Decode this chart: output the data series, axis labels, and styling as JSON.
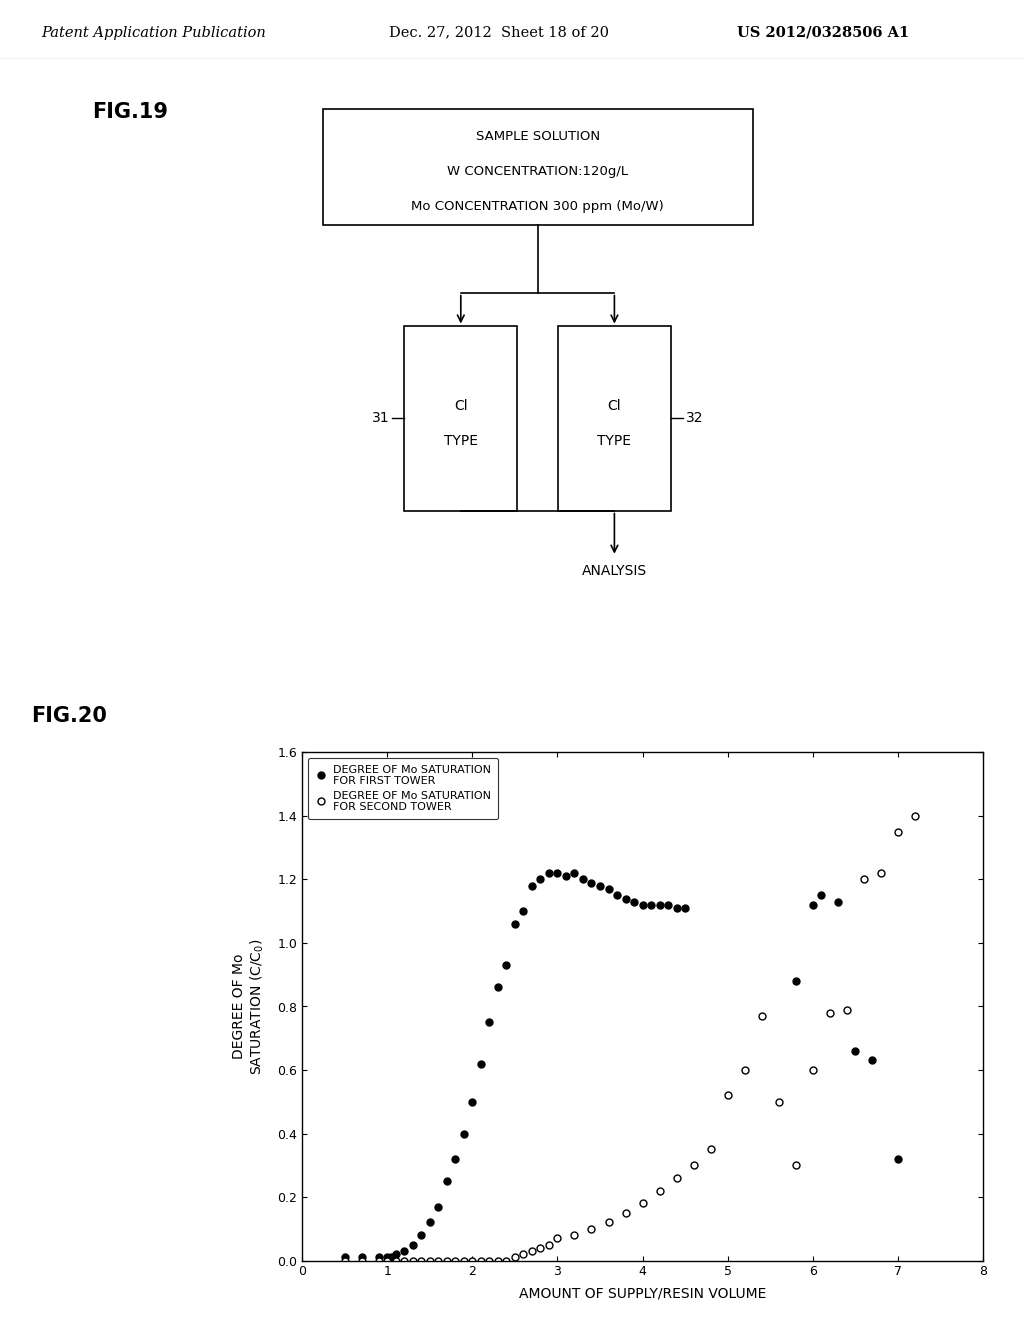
{
  "header_left": "Patent Application Publication",
  "header_mid": "Dec. 27, 2012  Sheet 18 of 20",
  "header_right": "US 2012/0328506 A1",
  "fig19_label": "FIG.19",
  "fig20_label": "FIG.20",
  "box_top_text": [
    "SAMPLE SOLUTION",
    "W CONCENTRATION:120g/L",
    "Mo CONCENTRATION 300 ppm (Mo/W)"
  ],
  "label_31": "31",
  "label_32": "32",
  "box_left_text": [
    "Cl",
    "TYPE"
  ],
  "box_right_text": [
    "Cl",
    "TYPE"
  ],
  "analysis_text": "ANALYSIS",
  "xlabel": "AMOUNT OF SUPPLY/RESIN VOLUME",
  "legend1": "DEGREE OF Mo SATURATION\nFOR FIRST TOWER",
  "legend2": "DEGREE OF Mo SATURATION\nFOR SECOND TOWER",
  "yticks": [
    0.0,
    0.2,
    0.4,
    0.6,
    0.8,
    1.0,
    1.2,
    1.4,
    1.6
  ],
  "xticks": [
    0,
    1,
    2,
    3,
    4,
    5,
    6,
    7,
    8
  ],
  "xlim": [
    0,
    8
  ],
  "ylim": [
    0.0,
    1.6
  ],
  "filled_x": [
    0.5,
    0.7,
    0.9,
    1.0,
    1.05,
    1.1,
    1.2,
    1.3,
    1.4,
    1.5,
    1.6,
    1.7,
    1.8,
    1.9,
    2.0,
    2.1,
    2.2,
    2.3,
    2.4,
    2.5,
    2.6,
    2.7,
    2.8,
    2.9,
    3.0,
    3.1,
    3.2,
    3.3,
    3.4,
    3.5,
    3.6,
    3.7,
    3.8,
    3.9,
    4.0,
    4.1,
    4.2,
    4.3,
    4.4,
    4.5,
    5.8,
    6.0,
    6.1,
    6.3,
    6.5,
    6.7,
    7.0
  ],
  "filled_y": [
    0.01,
    0.01,
    0.01,
    0.01,
    0.01,
    0.02,
    0.03,
    0.05,
    0.08,
    0.12,
    0.17,
    0.25,
    0.32,
    0.4,
    0.5,
    0.62,
    0.75,
    0.86,
    0.93,
    1.06,
    1.1,
    1.18,
    1.2,
    1.22,
    1.22,
    1.21,
    1.22,
    1.2,
    1.19,
    1.18,
    1.17,
    1.15,
    1.14,
    1.13,
    1.12,
    1.12,
    1.12,
    1.12,
    1.11,
    1.11,
    0.88,
    1.12,
    1.15,
    1.13,
    0.66,
    0.63,
    0.32
  ],
  "open_x": [
    0.5,
    0.7,
    0.9,
    1.0,
    1.1,
    1.2,
    1.3,
    1.4,
    1.5,
    1.6,
    1.7,
    1.8,
    1.9,
    2.0,
    2.1,
    2.2,
    2.3,
    2.4,
    2.5,
    2.6,
    2.7,
    2.8,
    2.9,
    3.0,
    3.2,
    3.4,
    3.6,
    3.8,
    4.0,
    4.2,
    4.4,
    4.6,
    4.8,
    5.0,
    5.2,
    5.4,
    5.6,
    5.8,
    6.0,
    6.2,
    6.4,
    6.6,
    6.8,
    7.0,
    7.2
  ],
  "open_y": [
    0.0,
    0.0,
    0.0,
    0.0,
    0.0,
    0.0,
    0.0,
    0.0,
    0.0,
    0.0,
    0.0,
    0.0,
    0.0,
    0.0,
    0.0,
    0.0,
    0.0,
    0.0,
    0.01,
    0.02,
    0.03,
    0.04,
    0.05,
    0.07,
    0.08,
    0.1,
    0.12,
    0.15,
    0.18,
    0.22,
    0.26,
    0.3,
    0.35,
    0.52,
    0.6,
    0.77,
    0.5,
    0.3,
    0.6,
    0.78,
    0.79,
    1.2,
    1.22,
    1.35,
    1.4
  ],
  "background_color": "#ffffff"
}
